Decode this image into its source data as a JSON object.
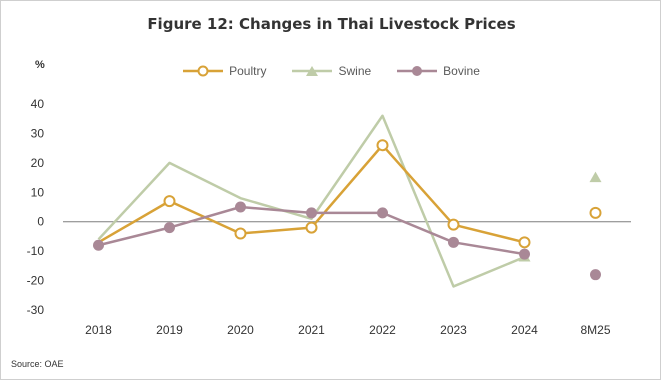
{
  "chart_data": {
    "type": "line",
    "title": "Figure 12: Changes in Thai Livestock Prices",
    "ylabel": "%",
    "xlabel": "",
    "categories": [
      "2018",
      "2019",
      "2020",
      "2021",
      "2022",
      "2023",
      "2024",
      "8M25"
    ],
    "ylim": [
      -30,
      40
    ],
    "yticks": [
      40,
      30,
      20,
      10,
      0,
      -10,
      -20,
      -30
    ],
    "grid": false,
    "legend_position": "top-center",
    "series": [
      {
        "name": "Poultry",
        "marker": "circle-open",
        "color": "#D8A237",
        "values": [
          -7,
          7,
          -4,
          -2,
          26,
          -1,
          -7,
          3
        ]
      },
      {
        "name": "Swine",
        "marker": "triangle",
        "color": "#BFCCA8",
        "values": [
          -6,
          20,
          8,
          1,
          36,
          -22,
          -12,
          15
        ]
      },
      {
        "name": "Bovine",
        "marker": "circle",
        "color": "#A98896",
        "values": [
          -8,
          -2,
          5,
          3,
          3,
          -7,
          -11,
          -18
        ]
      }
    ],
    "unconnected_categories": [
      "8M25"
    ],
    "source": "Source: OAE"
  }
}
